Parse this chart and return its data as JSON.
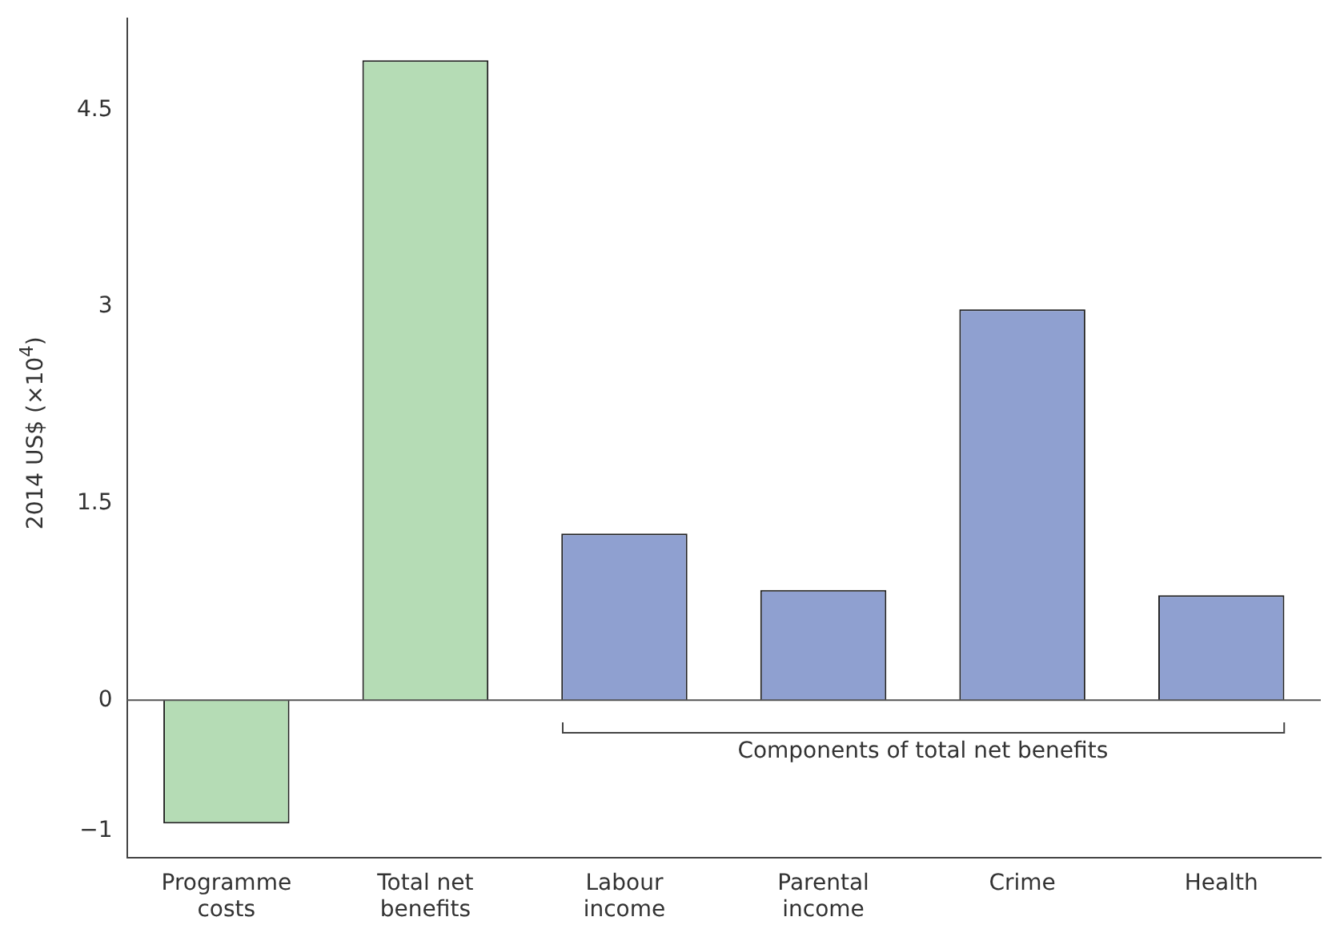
{
  "chart_data": {
    "type": "bar",
    "ylabel": "2014 US$ (×10$^{4}$)",
    "categories": [
      "Programme costs",
      "Total net benefits",
      "Labour income",
      "Parental income",
      "Crime",
      "Health"
    ],
    "values": [
      -0.94,
      4.88,
      1.27,
      0.84,
      2.98,
      0.8
    ],
    "colors": [
      "#b5dcb5",
      "#b5dcb5",
      "#8fa0d0",
      "#8fa0d0",
      "#8fa0d0",
      "#8fa0d0"
    ],
    "ylim": [
      -1.2,
      5.2
    ],
    "yticks": [
      {
        "value": -1,
        "label": "−1"
      },
      0,
      1.5,
      3,
      4.5
    ],
    "ref_lines": [
      {
        "axis": "y",
        "value": 0,
        "color": "#555555"
      }
    ],
    "annotations": [
      "Components of total net benefits"
    ],
    "grid": false,
    "legend": false
  }
}
